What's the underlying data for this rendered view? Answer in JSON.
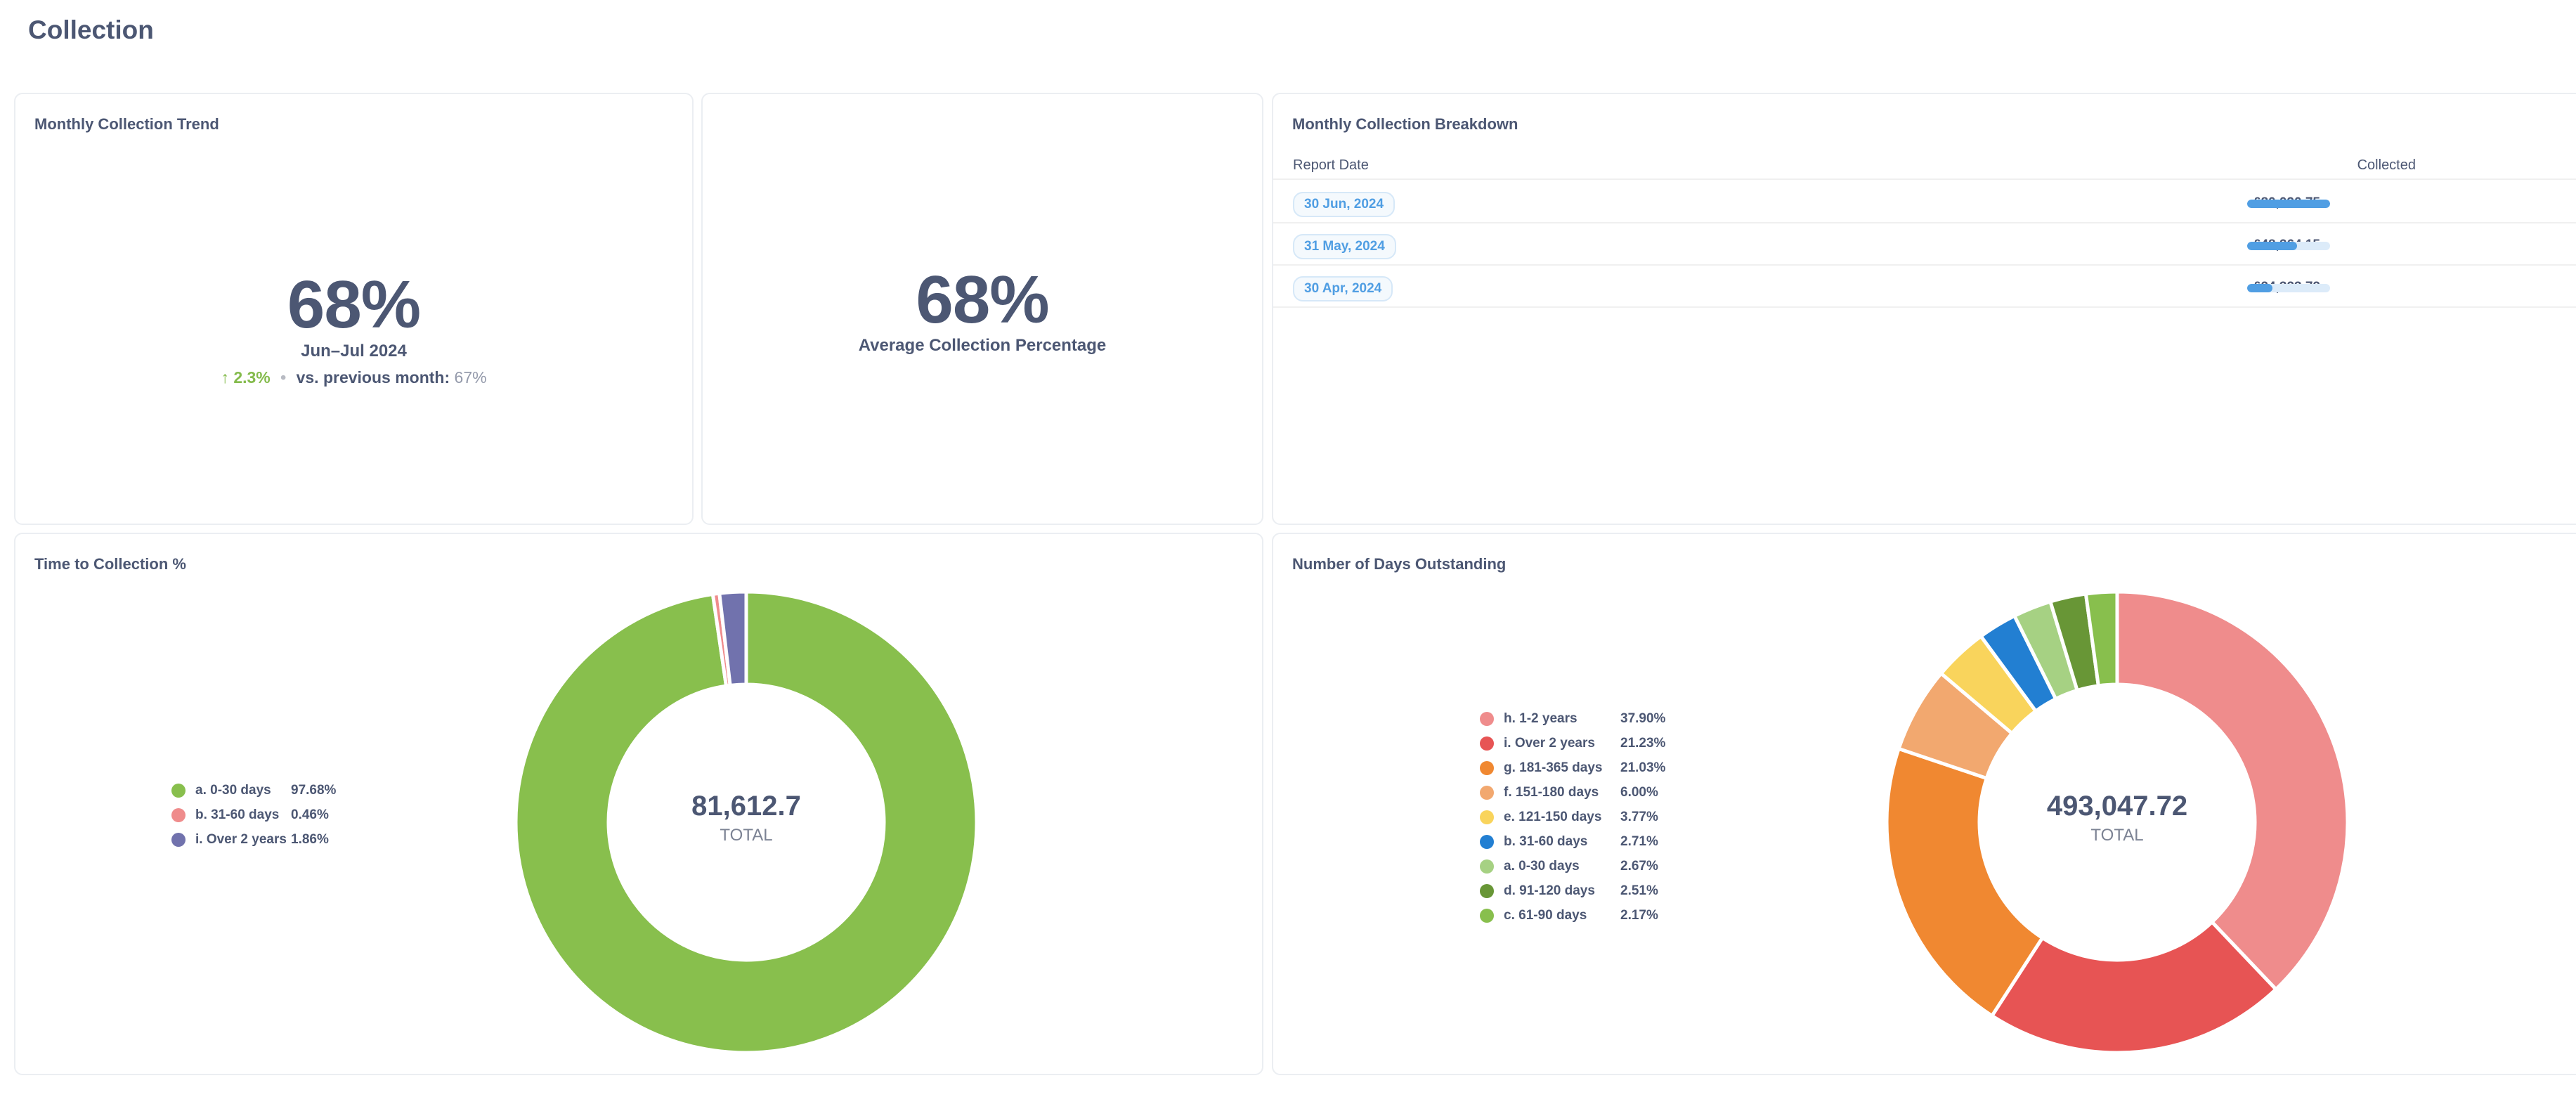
{
  "page": {
    "title": "Collection"
  },
  "trend": {
    "title": "Monthly Collection Trend",
    "value": "68%",
    "period": "Jun–Jul 2024",
    "change_arrow": "↑",
    "change": "2.3%",
    "separator": "•",
    "comparison_label": "vs. previous month:",
    "comparison_value": "67%"
  },
  "average": {
    "value": "68%",
    "label": "Average Collection Percentage"
  },
  "breakdown": {
    "title": "Monthly Collection Breakdown",
    "columns": [
      "Report Date",
      "Collected"
    ],
    "rows": [
      {
        "date": "30 Jun, 2024",
        "collected": "£80,090.75",
        "fraction": 1.0
      },
      {
        "date": "31 May, 2024",
        "collected": "£48,264.15",
        "fraction": 0.6026
      },
      {
        "date": "30 Apr, 2024",
        "collected": "£24,323.72",
        "fraction": 0.3037
      }
    ]
  },
  "time_to_collection": {
    "title": "Time to Collection %",
    "total_value": "81,612.7",
    "total_label": "TOTAL"
  },
  "days_outstanding": {
    "title": "Number of Days Outstanding",
    "total_value": "493,047.72",
    "total_label": "TOTAL"
  },
  "chart_data": [
    {
      "type": "pie",
      "title": "Time to Collection %",
      "categories": [
        "a. 0-30 days",
        "b. 31-60 days",
        "i. Over 2 years"
      ],
      "values": [
        97.68,
        0.46,
        1.86
      ],
      "labels": [
        "97.68%",
        "0.46%",
        "1.86%"
      ],
      "colors": [
        "#88bf4d",
        "#ef8c8c",
        "#7172ad"
      ],
      "legend": "left"
    },
    {
      "type": "pie",
      "title": "Number of Days Outstanding",
      "categories": [
        "h. 1-2 years",
        "i. Over 2 years",
        "g. 181-365 days",
        "f. 151-180 days",
        "e. 121-150 days",
        "b. 31-60 days",
        "a. 0-30 days",
        "d. 91-120 days",
        "c. 61-90 days"
      ],
      "values": [
        37.9,
        21.23,
        21.03,
        6.0,
        3.77,
        2.71,
        2.67,
        2.51,
        2.17
      ],
      "labels": [
        "37.90%",
        "21.23%",
        "21.03%",
        "6.00%",
        "3.77%",
        "2.71%",
        "2.67%",
        "2.51%",
        "2.17%"
      ],
      "colors": [
        "#ef8c8c",
        "#e75454",
        "#f08831",
        "#f2a86f",
        "#f9d45c",
        "#227fd2",
        "#a6d183",
        "#689636",
        "#88bf4d"
      ],
      "legend": "left"
    }
  ]
}
